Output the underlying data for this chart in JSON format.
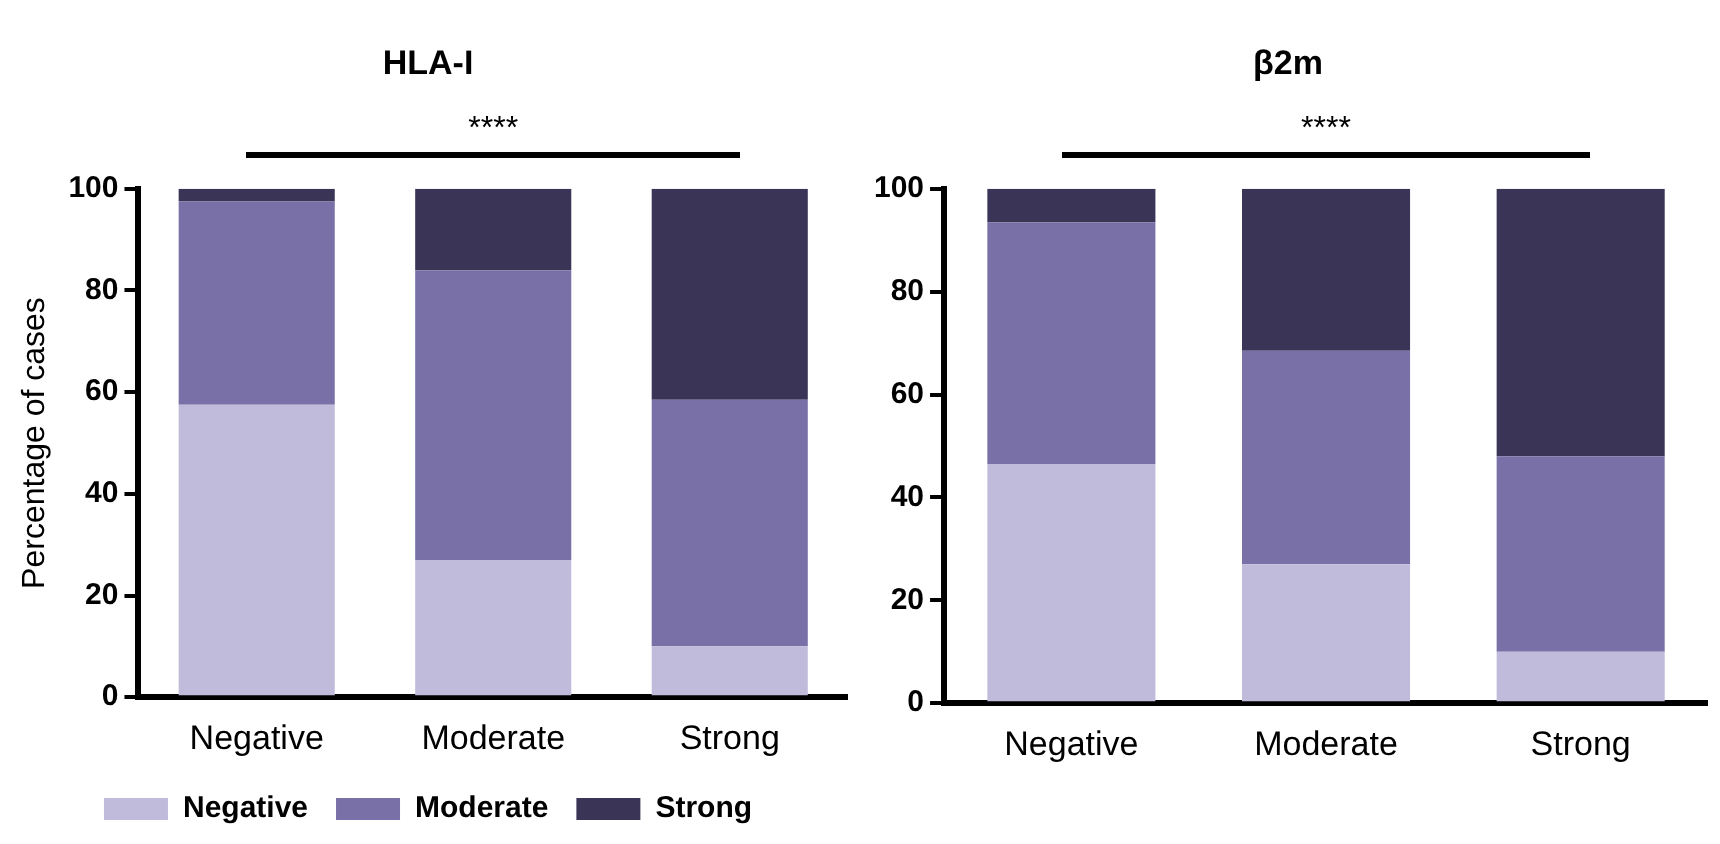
{
  "chart_data": [
    {
      "type": "bar",
      "title": "HLA-I",
      "ylabel": "Percentage of cases",
      "categories": [
        "Negative",
        "Moderate",
        "Strong"
      ],
      "stacked": true,
      "ylim": [
        0,
        100
      ],
      "yticks": [
        0,
        20,
        40,
        60,
        80,
        100
      ],
      "grid": false,
      "legend": "bottom",
      "annotations": [
        "****"
      ],
      "series": [
        {
          "name": "Negative",
          "color": "#c0bbdb",
          "values": [
            57.5,
            27,
            10
          ]
        },
        {
          "name": "Moderate",
          "color": "#7a70a8",
          "values": [
            40,
            57,
            48.5
          ]
        },
        {
          "name": "Strong",
          "color": "#3a3456",
          "values": [
            2.5,
            16,
            41.5
          ]
        }
      ]
    },
    {
      "type": "bar",
      "title": "β2m",
      "categories": [
        "Negative",
        "Moderate",
        "Strong"
      ],
      "stacked": true,
      "ylim": [
        0,
        100
      ],
      "yticks": [
        0,
        20,
        40,
        60,
        80,
        100
      ],
      "grid": false,
      "annotations": [
        "****"
      ],
      "series": [
        {
          "color": "#c0bbdb",
          "values": [
            46.5,
            27,
            10
          ]
        },
        {
          "color": "#7a70a8",
          "values": [
            47,
            41.5,
            38
          ]
        },
        {
          "color": "#3a3456",
          "values": [
            6.5,
            31.5,
            52
          ]
        }
      ]
    }
  ]
}
